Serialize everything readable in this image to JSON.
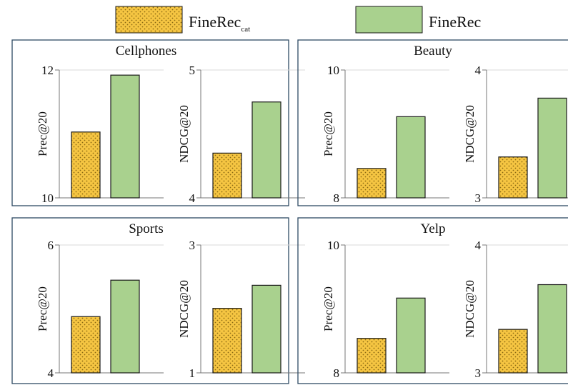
{
  "legend": {
    "items": [
      {
        "label": "FineRec",
        "subscript": "cat",
        "fill": "#f5c542",
        "pattern": "dotted"
      },
      {
        "label": "FineRec",
        "subscript": "",
        "fill": "#a9d18e",
        "pattern": "solid"
      }
    ]
  },
  "colors": {
    "cat_bar": "#f5c542",
    "cat_dot": "#8a6a12",
    "main_bar": "#a9d18e",
    "bar_stroke": "#1a1a1a",
    "panel_border": "#2e4a63",
    "axis": "#777777",
    "grid": "#d9d9d9"
  },
  "chart_data": [
    {
      "type": "bar",
      "title": "Cellphones",
      "subplots": [
        {
          "ylabel": "Prec@20",
          "ylim": [
            10,
            12
          ],
          "yticks": [
            "10",
            "12"
          ],
          "categories": [
            "FineRec_cat",
            "FineRec"
          ],
          "values": [
            11.03,
            11.92
          ]
        },
        {
          "ylabel": "NDCG@20",
          "ylim": [
            4,
            5
          ],
          "yticks": [
            "4",
            "5"
          ],
          "categories": [
            "FineRec_cat",
            "FineRec"
          ],
          "values": [
            4.35,
            4.75
          ]
        }
      ]
    },
    {
      "type": "bar",
      "title": "Beauty",
      "subplots": [
        {
          "ylabel": "Prec@20",
          "ylim": [
            8,
            10
          ],
          "yticks": [
            "8",
            "10"
          ],
          "categories": [
            "FineRec_cat",
            "FineRec"
          ],
          "values": [
            8.46,
            9.27
          ]
        },
        {
          "ylabel": "NDCG@20",
          "ylim": [
            3,
            4
          ],
          "yticks": [
            "3",
            "4"
          ],
          "categories": [
            "FineRec_cat",
            "FineRec"
          ],
          "values": [
            3.32,
            3.78
          ]
        }
      ]
    },
    {
      "type": "bar",
      "title": "Sports",
      "subplots": [
        {
          "ylabel": "Prec@20",
          "ylim": [
            4,
            6
          ],
          "yticks": [
            "4",
            "6"
          ],
          "categories": [
            "FineRec_cat",
            "FineRec"
          ],
          "values": [
            4.88,
            5.45
          ]
        },
        {
          "ylabel": "NDCG@20",
          "ylim": [
            1,
            3
          ],
          "yticks": [
            "1",
            "3"
          ],
          "categories": [
            "FineRec_cat",
            "FineRec"
          ],
          "values": [
            2.01,
            2.37
          ]
        }
      ]
    },
    {
      "type": "bar",
      "title": "Yelp",
      "subplots": [
        {
          "ylabel": "Prec@20",
          "ylim": [
            8,
            10
          ],
          "yticks": [
            "8",
            "10"
          ],
          "categories": [
            "FineRec_cat",
            "FineRec"
          ],
          "values": [
            8.54,
            9.17
          ]
        },
        {
          "ylabel": "NDCG@20",
          "ylim": [
            3,
            4
          ],
          "yticks": [
            "3",
            "4"
          ],
          "categories": [
            "FineRec_cat",
            "FineRec"
          ],
          "values": [
            3.34,
            3.69
          ]
        }
      ]
    }
  ]
}
